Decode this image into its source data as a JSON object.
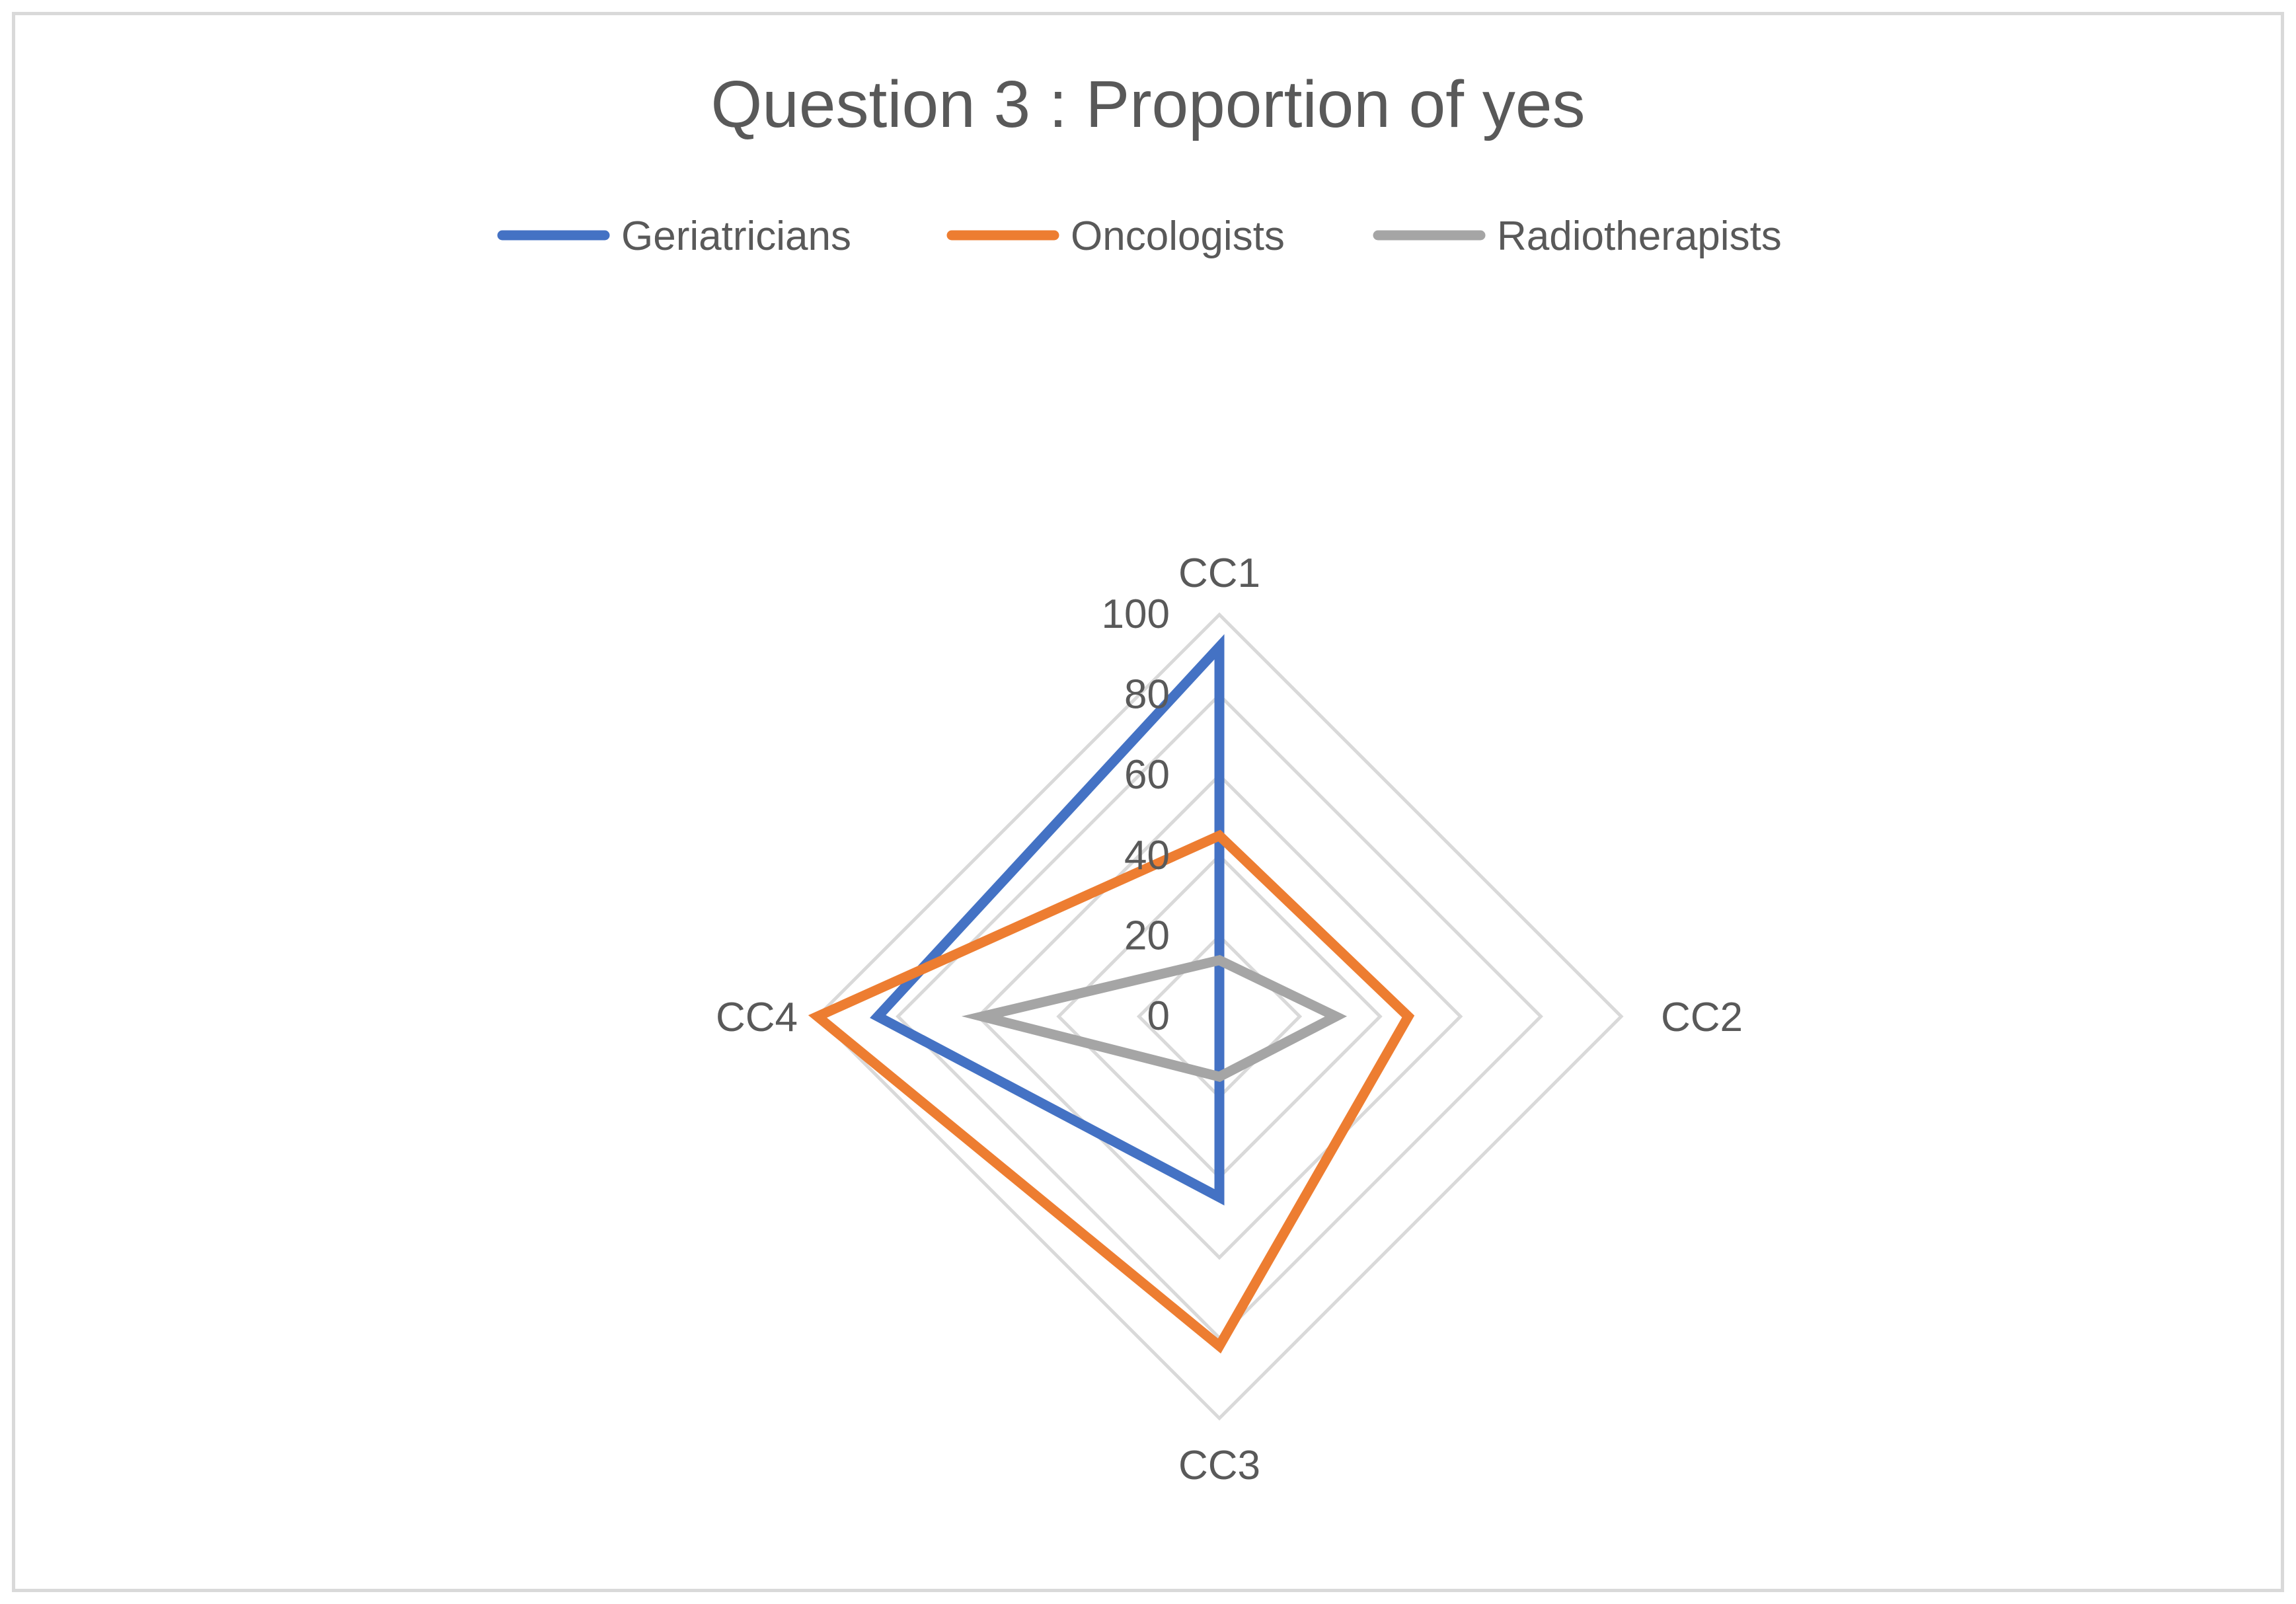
{
  "chart_data": {
    "type": "radar",
    "title": "Question 3 : Proportion of yes",
    "categories": [
      "CC1",
      "CC2",
      "CC3",
      "CC4"
    ],
    "rlim": [
      0,
      100
    ],
    "ticks": [
      0,
      20,
      40,
      60,
      80,
      100
    ],
    "tick_labels": [
      "0",
      "20",
      "40",
      "60",
      "80",
      "100"
    ],
    "grid": true,
    "legend_position": "top",
    "series": [
      {
        "name": "Geriatricians",
        "color": "#4472c4",
        "values": [
          92,
          0,
          45,
          85
        ]
      },
      {
        "name": "Oncologists",
        "color": "#ed7d31",
        "values": [
          45,
          47,
          82,
          100
        ]
      },
      {
        "name": "Radiotherapists",
        "color": "#a5a5a5",
        "values": [
          14,
          29,
          15,
          59
        ]
      }
    ],
    "grid_color": "#d9d9d9"
  }
}
